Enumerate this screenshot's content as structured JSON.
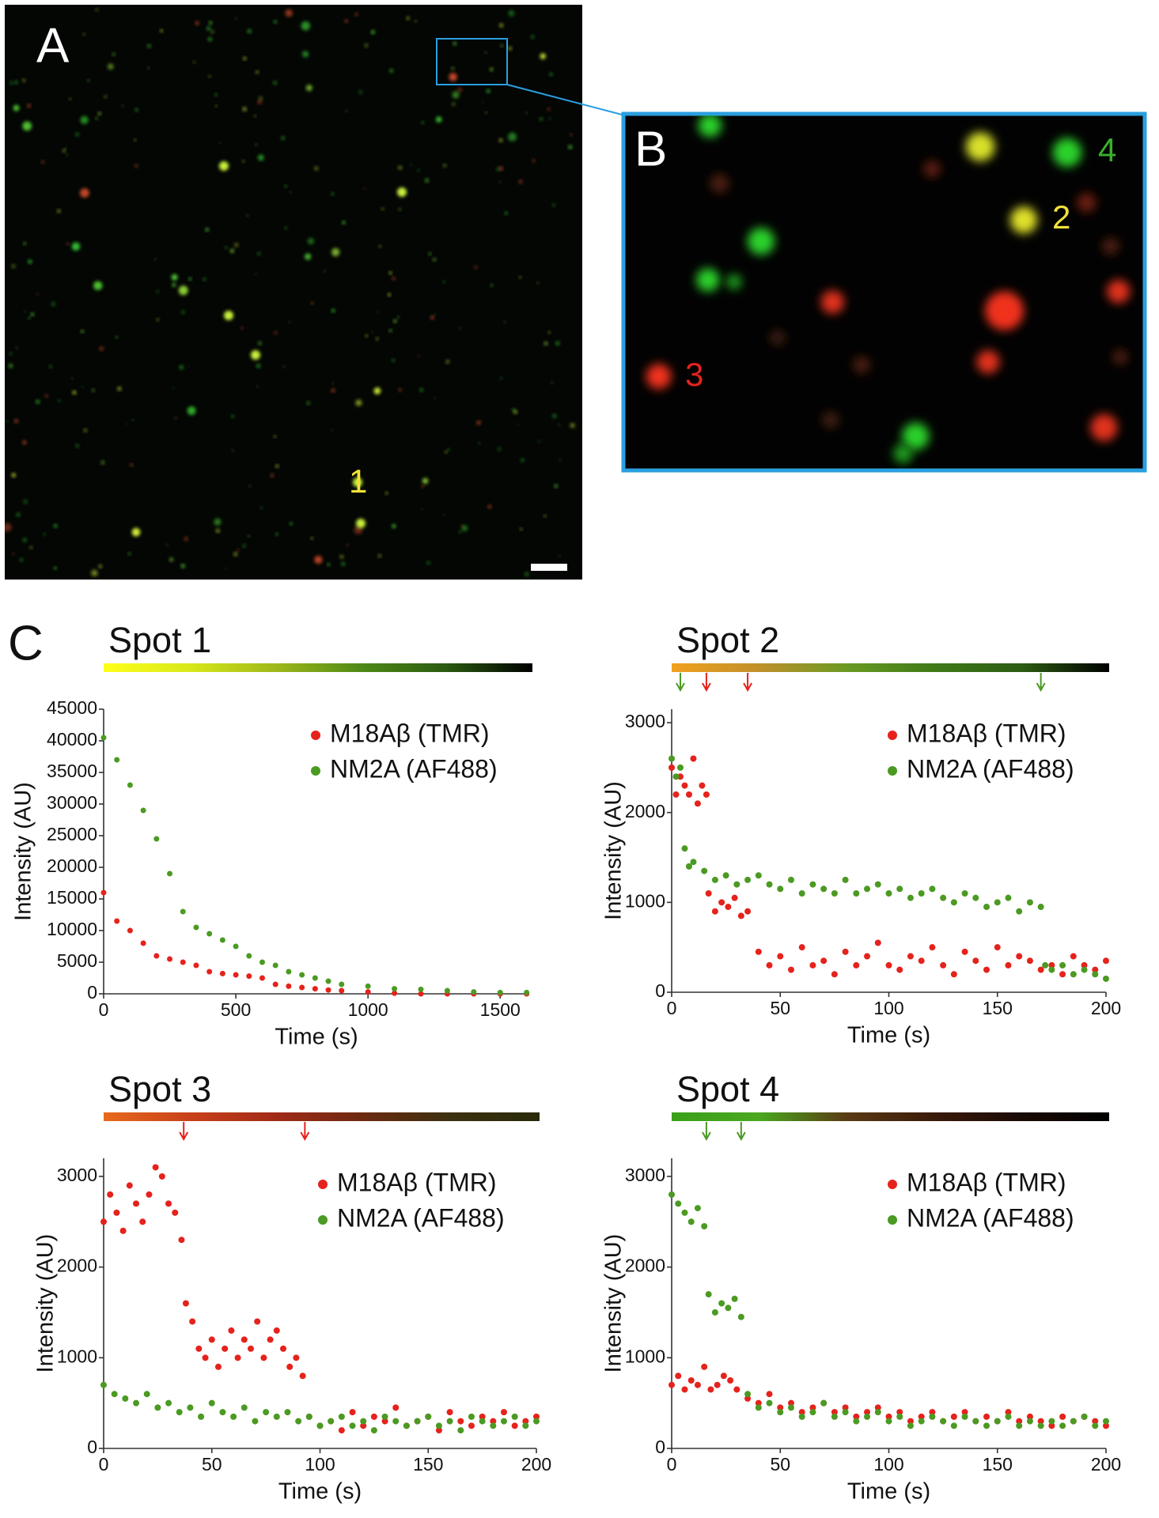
{
  "panel_labels": [
    "A",
    "B",
    "C"
  ],
  "spot_labels": [
    "1",
    "2",
    "3",
    "4"
  ],
  "chart_data": [
    {
      "type": "scatter",
      "title": "Spot 1",
      "x_label": "Time (s)",
      "y_label": "Intensity (AU)",
      "xlim": [
        0,
        1610
      ],
      "ylim": [
        0,
        45000
      ],
      "xticks": [
        0,
        500,
        1000,
        1500
      ],
      "yticks": [
        0,
        5000,
        10000,
        15000,
        20000,
        25000,
        30000,
        35000,
        40000,
        45000
      ],
      "legend": "upper right",
      "grid": false,
      "strip": [
        "#ffff1a",
        "#d8e81a",
        "#9fb81a",
        "#4f8a16",
        "#2a5a10",
        "#000000"
      ],
      "arrows": [],
      "series": [
        {
          "name": "M18Aβ (TMR)",
          "color": "#e5221c",
          "x": [
            0,
            50,
            100,
            150,
            200,
            250,
            300,
            350,
            400,
            450,
            500,
            550,
            600,
            650,
            700,
            750,
            800,
            850,
            900,
            1000,
            1100,
            1200,
            1300,
            1400,
            1500,
            1600
          ],
          "values": [
            16000,
            11500,
            10000,
            8000,
            6000,
            5500,
            5000,
            4500,
            3500,
            3200,
            3000,
            2800,
            2500,
            1500,
            1200,
            1000,
            800,
            600,
            500,
            300,
            100,
            0,
            0,
            0,
            0,
            0
          ]
        },
        {
          "name": "NM2A (AF488)",
          "color": "#4b9a22",
          "x": [
            0,
            50,
            100,
            150,
            200,
            250,
            300,
            350,
            400,
            450,
            500,
            550,
            600,
            650,
            700,
            750,
            800,
            850,
            900,
            1000,
            1100,
            1200,
            1300,
            1400,
            1500,
            1600
          ],
          "values": [
            40500,
            37000,
            33000,
            29000,
            24500,
            19000,
            13000,
            10500,
            9500,
            8500,
            7500,
            6000,
            5000,
            4500,
            3500,
            3000,
            2500,
            2000,
            1500,
            1200,
            800,
            700,
            500,
            300,
            200,
            200
          ]
        }
      ]
    },
    {
      "type": "scatter",
      "title": "Spot 2",
      "x_label": "Time (s)",
      "y_label": "Intensity (AU)",
      "xlim": [
        0,
        200
      ],
      "ylim": [
        0,
        3150
      ],
      "xticks": [
        0,
        50,
        100,
        150,
        200
      ],
      "yticks": [
        0,
        1000,
        2000,
        3000
      ],
      "legend": "upper right",
      "grid": false,
      "strip": [
        "#f0a020",
        "#c0902a",
        "#6a9a22",
        "#3f7a18",
        "#2c5c12",
        "#000000"
      ],
      "arrows": [
        {
          "x": 4,
          "color": "#4b9a22"
        },
        {
          "x": 16,
          "color": "#e5221c"
        },
        {
          "x": 35,
          "color": "#e5221c"
        },
        {
          "x": 170,
          "color": "#4b9a22"
        }
      ],
      "series": [
        {
          "name": "M18Aβ (TMR)",
          "color": "#e5221c",
          "x": [
            0,
            2,
            4,
            6,
            8,
            10,
            12,
            14,
            16,
            17,
            20,
            23,
            26,
            29,
            32,
            35,
            40,
            45,
            50,
            55,
            60,
            65,
            70,
            75,
            80,
            85,
            90,
            95,
            100,
            105,
            110,
            115,
            120,
            125,
            130,
            135,
            140,
            145,
            150,
            155,
            160,
            165,
            170,
            175,
            180,
            185,
            190,
            195,
            200
          ],
          "values": [
            2500,
            2200,
            2400,
            2300,
            2200,
            2600,
            2100,
            2300,
            2200,
            1100,
            900,
            1000,
            950,
            1050,
            850,
            900,
            450,
            300,
            400,
            250,
            500,
            300,
            350,
            200,
            450,
            300,
            400,
            550,
            300,
            250,
            400,
            350,
            500,
            300,
            200,
            450,
            350,
            250,
            500,
            300,
            400,
            350,
            250,
            300,
            200,
            400,
            300,
            250,
            350
          ]
        },
        {
          "name": "NM2A (AF488)",
          "color": "#4b9a22",
          "x": [
            0,
            2,
            4,
            6,
            8,
            10,
            15,
            20,
            25,
            30,
            35,
            40,
            45,
            50,
            55,
            60,
            65,
            70,
            75,
            80,
            85,
            90,
            95,
            100,
            105,
            110,
            115,
            120,
            125,
            130,
            135,
            140,
            145,
            150,
            155,
            160,
            165,
            170,
            172,
            175,
            180,
            185,
            190,
            195,
            200
          ],
          "values": [
            2600,
            2400,
            2500,
            1600,
            1400,
            1450,
            1350,
            1250,
            1300,
            1200,
            1250,
            1300,
            1200,
            1150,
            1250,
            1100,
            1200,
            1150,
            1100,
            1250,
            1100,
            1150,
            1200,
            1100,
            1150,
            1050,
            1100,
            1150,
            1050,
            1000,
            1100,
            1050,
            950,
            1000,
            1050,
            900,
            1000,
            950,
            300,
            250,
            300,
            200,
            250,
            200,
            150
          ]
        }
      ]
    },
    {
      "type": "scatter",
      "title": "Spot 3",
      "x_label": "Time (s)",
      "y_label": "Intensity (AU)",
      "xlim": [
        0,
        200
      ],
      "ylim": [
        0,
        3200
      ],
      "xticks": [
        0,
        50,
        100,
        150,
        200
      ],
      "yticks": [
        0,
        1000,
        2000,
        3000
      ],
      "legend": "upper right",
      "grid": false,
      "strip": [
        "#e86a1c",
        "#c8401a",
        "#a02a18",
        "#6a2a10",
        "#3a3010",
        "#2a2a0a"
      ],
      "arrows": [
        {
          "x": 37,
          "color": "#e5221c"
        },
        {
          "x": 93,
          "color": "#e5221c"
        }
      ],
      "series": [
        {
          "name": "M18Aβ (TMR)",
          "color": "#e5221c",
          "x": [
            0,
            3,
            6,
            9,
            12,
            15,
            18,
            21,
            24,
            27,
            30,
            33,
            36,
            38,
            41,
            44,
            47,
            50,
            53,
            56,
            59,
            62,
            65,
            68,
            71,
            74,
            77,
            80,
            83,
            86,
            89,
            92,
            95,
            100,
            105,
            110,
            115,
            120,
            125,
            130,
            135,
            140,
            145,
            150,
            155,
            160,
            165,
            170,
            175,
            180,
            185,
            190,
            195,
            200
          ],
          "values": [
            2500,
            2800,
            2600,
            2400,
            2900,
            2700,
            2500,
            2800,
            3100,
            3000,
            2700,
            2600,
            2300,
            1600,
            1400,
            1100,
            1000,
            1200,
            900,
            1100,
            1300,
            1000,
            1200,
            1100,
            1400,
            1000,
            1200,
            1300,
            1100,
            900,
            1000,
            800,
            350,
            250,
            300,
            200,
            400,
            250,
            350,
            300,
            450,
            250,
            300,
            350,
            200,
            400,
            300,
            250,
            350,
            300,
            400,
            250,
            300,
            350
          ]
        },
        {
          "name": "NM2A (AF488)",
          "color": "#4b9a22",
          "x": [
            0,
            5,
            10,
            15,
            20,
            25,
            30,
            35,
            40,
            45,
            50,
            55,
            60,
            65,
            70,
            75,
            80,
            85,
            90,
            95,
            100,
            105,
            110,
            115,
            120,
            125,
            130,
            135,
            140,
            145,
            150,
            155,
            160,
            165,
            170,
            175,
            180,
            185,
            190,
            195,
            200
          ],
          "values": [
            700,
            600,
            550,
            500,
            600,
            450,
            500,
            400,
            450,
            350,
            500,
            400,
            350,
            450,
            300,
            400,
            350,
            400,
            300,
            350,
            250,
            300,
            350,
            250,
            300,
            200,
            350,
            300,
            250,
            300,
            350,
            250,
            300,
            200,
            350,
            300,
            250,
            300,
            350,
            250,
            300
          ]
        }
      ]
    },
    {
      "type": "scatter",
      "title": "Spot 4",
      "x_label": "Time (s)",
      "y_label": "Intensity (AU)",
      "xlim": [
        0,
        200
      ],
      "ylim": [
        0,
        3200
      ],
      "xticks": [
        0,
        50,
        100,
        150,
        200
      ],
      "yticks": [
        0,
        1000,
        2000,
        3000
      ],
      "legend": "upper right",
      "grid": false,
      "strip": [
        "#3aa01a",
        "#4aa81e",
        "#5a3a14",
        "#3a1a0a",
        "#1a0a05",
        "#000000"
      ],
      "arrows": [
        {
          "x": 16,
          "color": "#4b9a22"
        },
        {
          "x": 32,
          "color": "#4b9a22"
        }
      ],
      "series": [
        {
          "name": "M18Aβ (TMR)",
          "color": "#e5221c",
          "x": [
            0,
            3,
            6,
            9,
            12,
            15,
            18,
            21,
            24,
            27,
            30,
            35,
            40,
            45,
            50,
            55,
            60,
            65,
            70,
            75,
            80,
            85,
            90,
            95,
            100,
            105,
            110,
            115,
            120,
            125,
            130,
            135,
            140,
            145,
            150,
            155,
            160,
            165,
            170,
            175,
            180,
            185,
            190,
            195,
            200
          ],
          "values": [
            700,
            800,
            650,
            750,
            700,
            900,
            650,
            700,
            800,
            750,
            650,
            550,
            500,
            600,
            450,
            500,
            400,
            450,
            500,
            400,
            450,
            350,
            400,
            450,
            350,
            400,
            300,
            350,
            400,
            300,
            350,
            400,
            300,
            350,
            300,
            400,
            300,
            350,
            300,
            250,
            350,
            300,
            350,
            300,
            250
          ]
        },
        {
          "name": "NM2A (AF488)",
          "color": "#4b9a22",
          "x": [
            0,
            3,
            6,
            9,
            12,
            15,
            17,
            20,
            23,
            26,
            29,
            32,
            35,
            40,
            45,
            50,
            55,
            60,
            65,
            70,
            75,
            80,
            85,
            90,
            95,
            100,
            105,
            110,
            115,
            120,
            125,
            130,
            135,
            140,
            145,
            150,
            155,
            160,
            165,
            170,
            175,
            180,
            185,
            190,
            195,
            200
          ],
          "values": [
            2800,
            2700,
            2600,
            2500,
            2650,
            2450,
            1700,
            1500,
            1600,
            1550,
            1650,
            1450,
            600,
            450,
            500,
            400,
            450,
            350,
            400,
            500,
            350,
            400,
            300,
            350,
            400,
            300,
            350,
            250,
            300,
            350,
            300,
            250,
            350,
            300,
            250,
            300,
            350,
            250,
            300,
            250,
            300,
            250,
            300,
            350,
            250,
            300
          ]
        }
      ]
    }
  ]
}
